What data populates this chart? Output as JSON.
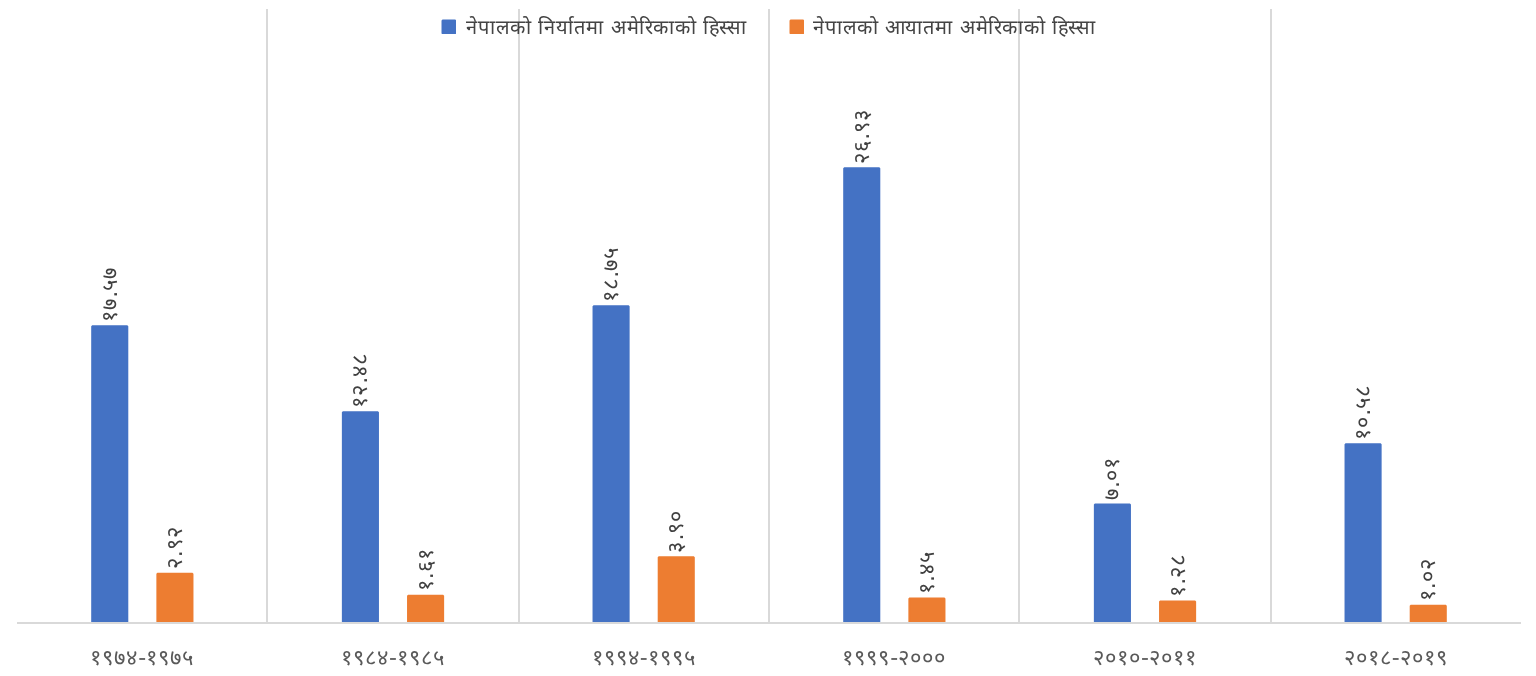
{
  "chart_data": {
    "type": "bar",
    "categories": [
      "१९७४-१९७५",
      "१९८४-१९८५",
      "१९९४-१९९५",
      "१९९९-२०००",
      "२०१०-२०११",
      "२०१८-२०१९"
    ],
    "series": [
      {
        "name": "नेपालको निर्यातमा अमेरिकाको हिस्सा",
        "color": "#4472c4",
        "values": [
          17.57,
          12.48,
          18.75,
          26.93,
          7.01,
          10.58
        ],
        "value_labels": [
          "१७.५७",
          "१२.४८",
          "१८.७५",
          "२६.९३",
          "७.०१",
          "१०.५८"
        ]
      },
      {
        "name": "नेपालको आयातमा अमेरिकाको हिस्सा",
        "color": "#ed7d31",
        "values": [
          2.92,
          1.61,
          3.9,
          1.45,
          1.28,
          1.02
        ],
        "value_labels": [
          "२.९२",
          "१.६१",
          "३.९०",
          "१.४५",
          "१.२८",
          "१.०२"
        ]
      }
    ],
    "grid": "x",
    "legend": "top"
  }
}
